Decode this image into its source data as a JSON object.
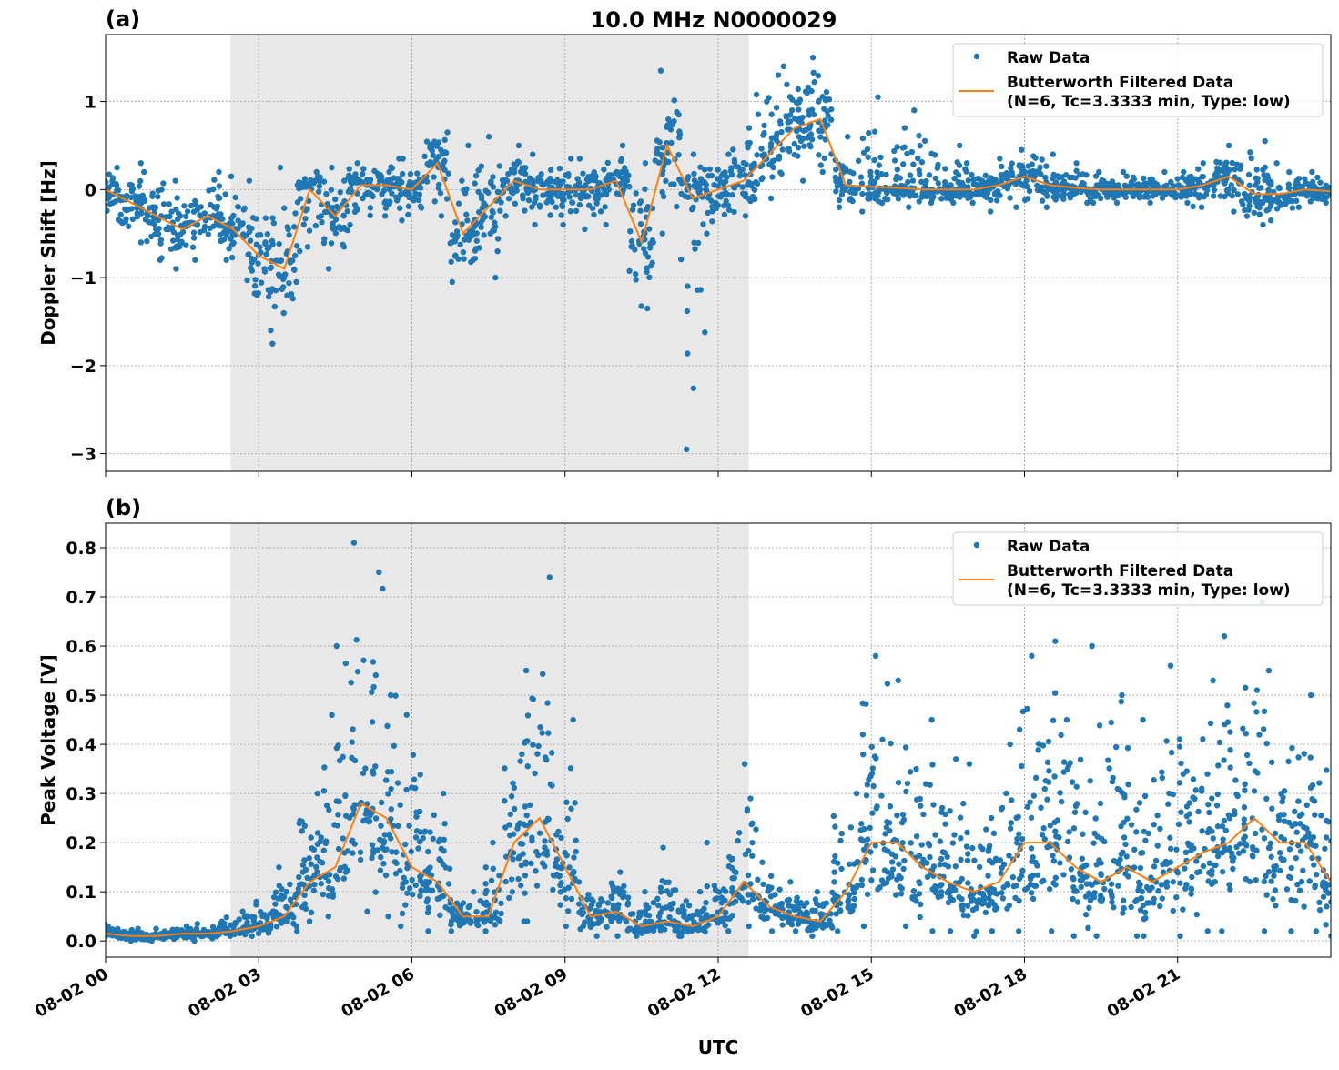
{
  "title": "10.0 MHz N0000029",
  "xlabel": "UTC",
  "x_tick_labels": [
    "08-02 00",
    "08-02 03",
    "08-02 06",
    "08-02 09",
    "08-02 12",
    "08-02 15",
    "08-02 18",
    "08-02 21"
  ],
  "x_tick_hours": [
    0,
    3,
    6,
    9,
    12,
    15,
    18,
    21
  ],
  "xlim_hours": [
    0,
    24
  ],
  "shaded_span_hours": [
    2.45,
    12.6
  ],
  "colors": {
    "raw": "#1f77b4",
    "filtered": "#ff7f0e",
    "shade": "#e8e8e8",
    "grid": "#b0b0b0"
  },
  "legend": {
    "raw_label": "Raw Data",
    "filtered_label_line1": "Butterworth Filtered Data",
    "filtered_label_line2": "(N=6, Tc=3.3333 min, Type: low)",
    "placement": "top-right"
  },
  "chart_data": [
    {
      "panel": "(a)",
      "type": "scatter+line",
      "ylabel": "Doppler Shift [Hz]",
      "ylim": [
        -3.2,
        1.76
      ],
      "y_ticks": [
        1,
        0,
        -1,
        -2,
        -3
      ],
      "y_tick_labels": [
        "1",
        "0",
        "−1",
        "−2",
        "−3"
      ],
      "grid": true,
      "x_hours": [
        0,
        0.5,
        1,
        1.5,
        2,
        2.5,
        3,
        3.5,
        4,
        4.5,
        5,
        5.5,
        6,
        6.5,
        7,
        7.5,
        8,
        8.5,
        9,
        9.5,
        10,
        10.5,
        11,
        11.5,
        12,
        12.5,
        13,
        13.5,
        14,
        14.5,
        15,
        15.5,
        16,
        16.5,
        17,
        17.5,
        18,
        18.5,
        19,
        19.5,
        20,
        20.5,
        21,
        21.5,
        22,
        22.5,
        23,
        23.5,
        24
      ],
      "filtered": [
        0,
        -0.15,
        -0.3,
        -0.45,
        -0.3,
        -0.45,
        -0.75,
        -0.9,
        0.0,
        -0.3,
        0.05,
        0.05,
        0.0,
        0.3,
        -0.5,
        -0.2,
        0.1,
        0.0,
        0.0,
        0.0,
        0.1,
        -0.6,
        0.5,
        -0.1,
        0.0,
        0.1,
        0.4,
        0.7,
        0.8,
        0.05,
        0.03,
        0.02,
        0.0,
        0.0,
        0.0,
        0.05,
        0.15,
        0.05,
        0.02,
        0.0,
        0.0,
        0.0,
        0.0,
        0.05,
        0.15,
        -0.05,
        -0.05,
        0.0,
        -0.02
      ],
      "raw_low": [
        -0.4,
        -0.6,
        -0.8,
        -0.9,
        -0.8,
        -0.8,
        -1.6,
        -1.75,
        -0.7,
        -0.9,
        -0.4,
        -0.3,
        -0.35,
        -0.3,
        -1.05,
        -1.0,
        -0.3,
        -0.4,
        -0.4,
        -0.45,
        -0.4,
        -1.35,
        -0.5,
        -2.95,
        -0.5,
        -0.3,
        -0.1,
        0.1,
        0.2,
        -0.2,
        -0.25,
        -0.2,
        -0.15,
        -0.15,
        -0.15,
        -0.25,
        -0.2,
        -0.2,
        -0.15,
        -0.15,
        -0.15,
        -0.15,
        -0.15,
        -0.2,
        -0.25,
        -0.4,
        -0.35,
        -0.2,
        -0.15
      ],
      "raw_high": [
        0.25,
        0.3,
        0.2,
        0.1,
        0.2,
        0.15,
        0.1,
        0.25,
        0.2,
        0.25,
        0.3,
        0.35,
        0.35,
        0.65,
        0.5,
        0.6,
        0.5,
        0.4,
        0.35,
        0.35,
        0.5,
        0.3,
        1.35,
        0.4,
        0.4,
        0.7,
        1.3,
        1.4,
        1.5,
        0.6,
        1.05,
        0.7,
        0.9,
        0.5,
        0.3,
        0.35,
        0.45,
        0.4,
        0.3,
        0.2,
        0.2,
        0.2,
        0.2,
        0.3,
        0.5,
        0.55,
        0.3,
        0.2,
        0.2
      ]
    },
    {
      "panel": "(b)",
      "type": "scatter+line",
      "ylabel": "Peak Voltage [V]",
      "ylim": [
        -0.033,
        0.85
      ],
      "y_ticks": [
        0.0,
        0.1,
        0.2,
        0.3,
        0.4,
        0.5,
        0.6,
        0.7,
        0.8
      ],
      "y_tick_labels": [
        "0.0",
        "0.1",
        "0.2",
        "0.3",
        "0.4",
        "0.5",
        "0.6",
        "0.7",
        "0.8"
      ],
      "grid": true,
      "x_hours": [
        0,
        0.5,
        1,
        1.5,
        2,
        2.5,
        3,
        3.5,
        4,
        4.5,
        5,
        5.5,
        6,
        6.5,
        7,
        7.5,
        8,
        8.5,
        9,
        9.5,
        10,
        10.5,
        11,
        11.5,
        12,
        12.5,
        13,
        13.5,
        14,
        14.5,
        15,
        15.5,
        16,
        16.5,
        17,
        17.5,
        18,
        18.5,
        19,
        19.5,
        20,
        20.5,
        21,
        21.5,
        22,
        22.5,
        23,
        23.5,
        24
      ],
      "filtered": [
        0.015,
        0.01,
        0.01,
        0.015,
        0.015,
        0.02,
        0.03,
        0.05,
        0.12,
        0.15,
        0.28,
        0.25,
        0.15,
        0.12,
        0.05,
        0.05,
        0.2,
        0.25,
        0.15,
        0.05,
        0.06,
        0.03,
        0.04,
        0.03,
        0.05,
        0.12,
        0.07,
        0.05,
        0.04,
        0.1,
        0.2,
        0.2,
        0.15,
        0.12,
        0.1,
        0.12,
        0.2,
        0.2,
        0.15,
        0.12,
        0.15,
        0.12,
        0.15,
        0.18,
        0.2,
        0.25,
        0.2,
        0.2,
        0.12
      ],
      "raw_low": [
        0.0,
        0.0,
        0.0,
        0.0,
        0.005,
        0.01,
        0.01,
        0.02,
        0.04,
        0.05,
        0.06,
        0.05,
        0.03,
        0.02,
        0.02,
        0.02,
        0.04,
        0.04,
        0.03,
        0.01,
        0.01,
        0.01,
        0.01,
        0.01,
        0.02,
        0.03,
        0.02,
        0.02,
        0.01,
        0.02,
        0.03,
        0.03,
        0.02,
        0.02,
        0.01,
        0.02,
        0.02,
        0.02,
        0.01,
        0.01,
        0.01,
        0.01,
        0.01,
        0.02,
        0.02,
        0.02,
        0.02,
        0.02,
        0.01
      ],
      "raw_high": [
        0.035,
        0.025,
        0.025,
        0.03,
        0.035,
        0.06,
        0.08,
        0.15,
        0.3,
        0.6,
        0.81,
        0.75,
        0.46,
        0.3,
        0.1,
        0.2,
        0.55,
        0.74,
        0.45,
        0.12,
        0.14,
        0.1,
        0.19,
        0.1,
        0.2,
        0.36,
        0.16,
        0.12,
        0.1,
        0.3,
        0.58,
        0.53,
        0.45,
        0.37,
        0.36,
        0.4,
        0.58,
        0.61,
        0.45,
        0.6,
        0.5,
        0.45,
        0.56,
        0.53,
        0.62,
        0.69,
        0.55,
        0.5,
        0.47
      ]
    }
  ]
}
